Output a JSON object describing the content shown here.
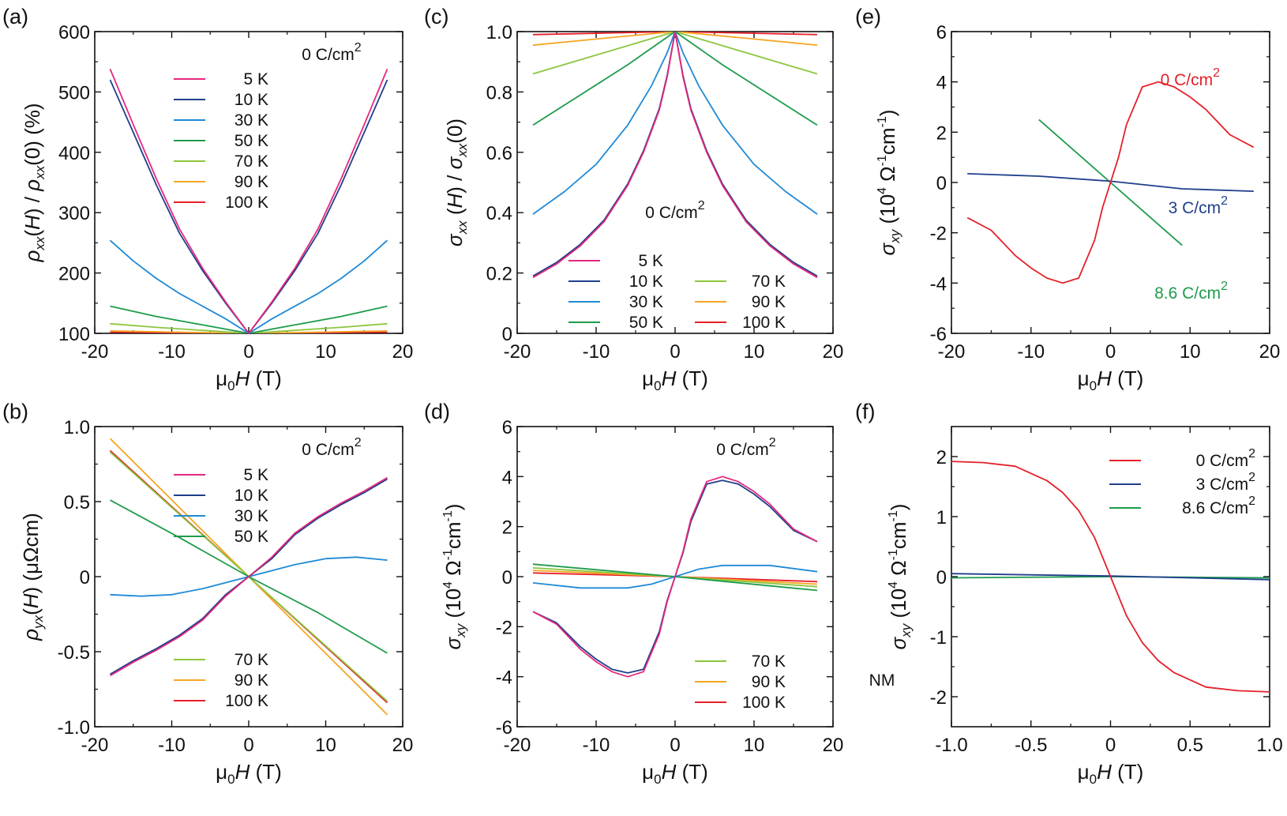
{
  "chart_data": [
    {
      "panel": "(a)",
      "type": "line",
      "xlabel": "μ0H (T)",
      "ylabel": "ρxx(H) / ρxx(0) (%)",
      "xlim": [
        -20,
        20
      ],
      "ylim": [
        100,
        600
      ],
      "xticks": [
        "-20",
        "-10",
        "0",
        "10",
        "20"
      ],
      "yticks": [
        "100",
        "200",
        "300",
        "400",
        "500",
        "600"
      ],
      "annotation": "0 C/cm²",
      "series": [
        {
          "name": "5 K",
          "color": "#e4287c",
          "x": [
            -18,
            -15,
            -12,
            -9,
            -6,
            -3,
            0,
            3,
            6,
            9,
            12,
            15,
            18
          ],
          "y": [
            538,
            446,
            356,
            273,
            208,
            152,
            100,
            152,
            208,
            273,
            356,
            446,
            538
          ]
        },
        {
          "name": "10 K",
          "color": "#1f3e8c",
          "x": [
            -18,
            -15,
            -12,
            -9,
            -6,
            -3,
            0,
            3,
            6,
            9,
            12,
            15,
            18
          ],
          "y": [
            520,
            433,
            346,
            266,
            204,
            150,
            100,
            150,
            204,
            266,
            346,
            433,
            520
          ]
        },
        {
          "name": "30 K",
          "color": "#1f8ad6",
          "x": [
            -18,
            -15,
            -12,
            -9,
            -6,
            -3,
            0,
            3,
            6,
            9,
            12,
            15,
            18
          ],
          "y": [
            254,
            220,
            191,
            166,
            145,
            124,
            100,
            124,
            145,
            166,
            191,
            220,
            254
          ]
        },
        {
          "name": "50 K",
          "color": "#1f9b4c",
          "x": [
            -18,
            -12,
            -6,
            0,
            6,
            12,
            18
          ],
          "y": [
            145,
            128,
            114,
            100,
            114,
            128,
            145
          ]
        },
        {
          "name": "70 K",
          "color": "#8cc63f",
          "x": [
            -18,
            -12,
            -6,
            0,
            6,
            12,
            18
          ],
          "y": [
            116,
            110,
            105,
            100,
            105,
            110,
            116
          ]
        },
        {
          "name": "90 K",
          "color": "#f5a623",
          "x": [
            -18,
            -9,
            0,
            9,
            18
          ],
          "y": [
            104,
            102,
            100,
            102,
            104
          ]
        },
        {
          "name": "100 K",
          "color": "#e5202a",
          "x": [
            -18,
            -9,
            0,
            9,
            18
          ],
          "y": [
            102,
            101,
            100,
            101,
            102
          ]
        }
      ]
    },
    {
      "panel": "(b)",
      "type": "line",
      "xlabel": "μ0H (T)",
      "ylabel": "ρyx(H) (μΩcm)",
      "xlim": [
        -20,
        20
      ],
      "ylim": [
        -1.0,
        1.0
      ],
      "xticks": [
        "-20",
        "-10",
        "0",
        "10",
        "20"
      ],
      "yticks": [
        "-1.0",
        "-0.5",
        "0",
        "0.5",
        "1.0"
      ],
      "annotation": "0 C/cm²",
      "series": [
        {
          "name": "5 K",
          "color": "#e4287c",
          "x": [
            -18,
            -15,
            -12,
            -9,
            -6,
            -3,
            0,
            3,
            6,
            9,
            12,
            15,
            18
          ],
          "y": [
            -0.66,
            -0.57,
            -0.49,
            -0.4,
            -0.29,
            -0.13,
            0,
            0.13,
            0.29,
            0.4,
            0.49,
            0.57,
            0.66
          ]
        },
        {
          "name": "10 K",
          "color": "#1f3e8c",
          "x": [
            -18,
            -15,
            -12,
            -9,
            -6,
            -3,
            0,
            3,
            6,
            9,
            12,
            15,
            18
          ],
          "y": [
            -0.65,
            -0.56,
            -0.48,
            -0.39,
            -0.28,
            -0.12,
            0,
            0.12,
            0.28,
            0.39,
            0.48,
            0.56,
            0.65
          ]
        },
        {
          "name": "30 K",
          "color": "#1f8ad6",
          "x": [
            -18,
            -14,
            -10,
            -6,
            -3,
            0,
            3,
            6,
            10,
            14,
            18
          ],
          "y": [
            -0.12,
            -0.13,
            -0.12,
            -0.08,
            -0.04,
            0,
            0.04,
            0.08,
            0.12,
            0.13,
            0.11
          ]
        },
        {
          "name": "50 K",
          "color": "#1f9b4c",
          "x": [
            -18,
            -9,
            0,
            9,
            18
          ],
          "y": [
            0.51,
            0.26,
            0,
            -0.24,
            -0.51
          ]
        },
        {
          "name": "70 K",
          "color": "#8cc63f",
          "x": [
            -18,
            0,
            18
          ],
          "y": [
            0.83,
            0,
            -0.83
          ]
        },
        {
          "name": "90 K",
          "color": "#f5a623",
          "x": [
            -18,
            0,
            18
          ],
          "y": [
            0.92,
            0,
            -0.92
          ]
        },
        {
          "name": "100 K",
          "color": "#e5202a",
          "x": [
            -18,
            0,
            18
          ],
          "y": [
            0.84,
            0,
            -0.84
          ]
        }
      ]
    },
    {
      "panel": "(c)",
      "type": "line",
      "xlabel": "μ0H (T)",
      "ylabel": "σxx (H) / σxx(0)",
      "xlim": [
        -20,
        20
      ],
      "ylim": [
        0,
        1.0
      ],
      "xticks": [
        "-20",
        "-10",
        "0",
        "10",
        "20"
      ],
      "yticks": [
        "0",
        "0.2",
        "0.4",
        "0.6",
        "0.8",
        "1.0"
      ],
      "annotation": "0 C/cm²",
      "series": [
        {
          "name": "5 K",
          "color": "#e4287c",
          "x": [
            -18,
            -15,
            -12,
            -9,
            -6,
            -4,
            -2,
            -1,
            0,
            1,
            2,
            4,
            6,
            9,
            12,
            15,
            18
          ],
          "y": [
            0.185,
            0.23,
            0.29,
            0.37,
            0.49,
            0.6,
            0.74,
            0.85,
            1.0,
            0.85,
            0.74,
            0.6,
            0.49,
            0.37,
            0.29,
            0.23,
            0.185
          ]
        },
        {
          "name": "10 K",
          "color": "#1f3e8c",
          "x": [
            -18,
            -15,
            -12,
            -9,
            -6,
            -4,
            -2,
            -1,
            0,
            1,
            2,
            4,
            6,
            9,
            12,
            15,
            18
          ],
          "y": [
            0.19,
            0.235,
            0.295,
            0.375,
            0.495,
            0.605,
            0.745,
            0.855,
            1.0,
            0.855,
            0.745,
            0.605,
            0.495,
            0.375,
            0.295,
            0.235,
            0.19
          ]
        },
        {
          "name": "30 K",
          "color": "#1f8ad6",
          "x": [
            -18,
            -14,
            -10,
            -6,
            -3,
            -1,
            0,
            1,
            3,
            6,
            10,
            14,
            18
          ],
          "y": [
            0.395,
            0.47,
            0.56,
            0.69,
            0.82,
            0.93,
            1.0,
            0.93,
            0.82,
            0.69,
            0.56,
            0.47,
            0.395
          ]
        },
        {
          "name": "50 K",
          "color": "#1f9b4c",
          "x": [
            -18,
            -12,
            -6,
            -3,
            0,
            3,
            6,
            12,
            18
          ],
          "y": [
            0.69,
            0.79,
            0.89,
            0.945,
            1.0,
            0.945,
            0.89,
            0.79,
            0.69
          ]
        },
        {
          "name": "70 K",
          "color": "#8cc63f",
          "x": [
            -18,
            -9,
            0,
            9,
            18
          ],
          "y": [
            0.86,
            0.93,
            1.0,
            0.93,
            0.86
          ]
        },
        {
          "name": "90 K",
          "color": "#f5a623",
          "x": [
            -18,
            -9,
            0,
            9,
            18
          ],
          "y": [
            0.955,
            0.978,
            1.0,
            0.978,
            0.955
          ]
        },
        {
          "name": "100 K",
          "color": "#e5202a",
          "x": [
            -18,
            -9,
            0,
            9,
            18
          ],
          "y": [
            0.99,
            0.995,
            1.0,
            0.995,
            0.99
          ]
        }
      ]
    },
    {
      "panel": "(d)",
      "type": "line",
      "xlabel": "μ0H (T)",
      "ylabel": "σxy (10⁴ Ω⁻¹cm⁻¹)",
      "xlim": [
        -20,
        20
      ],
      "ylim": [
        -6,
        6
      ],
      "xticks": [
        "-20",
        "-10",
        "0",
        "10",
        "20"
      ],
      "yticks": [
        "-6",
        "-4",
        "-2",
        "0",
        "2",
        "4",
        "6"
      ],
      "annotation": "0 C/cm²",
      "series": [
        {
          "name": "5 K",
          "color": "#e4287c",
          "x": [
            -18,
            -15,
            -12,
            -10,
            -8,
            -6,
            -4,
            -2,
            -1,
            0,
            1,
            2,
            4,
            6,
            8,
            10,
            12,
            15,
            18
          ],
          "y": [
            -1.4,
            -1.9,
            -2.9,
            -3.4,
            -3.8,
            -4.0,
            -3.8,
            -2.3,
            -1.0,
            0,
            1.0,
            2.3,
            3.8,
            4.0,
            3.8,
            3.4,
            2.9,
            1.9,
            1.4
          ]
        },
        {
          "name": "10 K",
          "color": "#1f3e8c",
          "x": [
            -18,
            -15,
            -12,
            -10,
            -8,
            -6,
            -4,
            -2,
            -1,
            0,
            1,
            2,
            4,
            6,
            8,
            10,
            12,
            15,
            18
          ],
          "y": [
            -1.4,
            -1.85,
            -2.8,
            -3.3,
            -3.7,
            -3.85,
            -3.7,
            -2.2,
            -0.95,
            0,
            0.95,
            2.2,
            3.7,
            3.85,
            3.7,
            3.3,
            2.8,
            1.85,
            1.4
          ]
        },
        {
          "name": "30 K",
          "color": "#1f8ad6",
          "x": [
            -18,
            -12,
            -6,
            -3,
            -1,
            0,
            1,
            3,
            6,
            12,
            18
          ],
          "y": [
            -0.25,
            -0.45,
            -0.45,
            -0.3,
            -0.1,
            0,
            0.1,
            0.3,
            0.45,
            0.45,
            0.2
          ]
        },
        {
          "name": "50 K",
          "color": "#1f9b4c",
          "x": [
            -18,
            0,
            18
          ],
          "y": [
            0.5,
            0,
            -0.55
          ]
        },
        {
          "name": "70 K",
          "color": "#8cc63f",
          "x": [
            -18,
            0,
            18
          ],
          "y": [
            0.35,
            0,
            -0.4
          ]
        },
        {
          "name": "90 K",
          "color": "#f5a623",
          "x": [
            -18,
            0,
            18
          ],
          "y": [
            0.25,
            0,
            -0.3
          ]
        },
        {
          "name": "100 K",
          "color": "#e5202a",
          "x": [
            -18,
            0,
            18
          ],
          "y": [
            0.15,
            0,
            -0.2
          ]
        }
      ]
    },
    {
      "panel": "(e)",
      "type": "line",
      "xlabel": "μ0H (T)",
      "ylabel": "σxy (10⁴ Ω⁻¹cm⁻¹)",
      "xlim": [
        -20,
        20
      ],
      "ylim": [
        -6,
        6
      ],
      "xticks": [
        "-20",
        "-10",
        "0",
        "10",
        "20"
      ],
      "yticks": [
        "-6",
        "-4",
        "-2",
        "0",
        "2",
        "4",
        "6"
      ],
      "series": [
        {
          "name": "0 C/cm²",
          "color": "#e5202a",
          "x": [
            -18,
            -15,
            -12,
            -10,
            -8,
            -6,
            -4,
            -2,
            -1,
            0,
            1,
            2,
            4,
            6,
            8,
            10,
            12,
            15,
            18
          ],
          "y": [
            -1.4,
            -1.9,
            -2.9,
            -3.4,
            -3.8,
            -4.0,
            -3.8,
            -2.3,
            -1.0,
            0,
            1.0,
            2.3,
            3.8,
            4.0,
            3.8,
            3.4,
            2.9,
            1.9,
            1.4
          ]
        },
        {
          "name": "3 C/cm²",
          "color": "#1f3e8c",
          "x": [
            -18,
            -9,
            0,
            9,
            18
          ],
          "y": [
            0.35,
            0.25,
            0.05,
            -0.25,
            -0.35
          ]
        },
        {
          "name": "8.6 C/cm²",
          "color": "#1f9b4c",
          "x": [
            -9,
            0,
            9
          ],
          "y": [
            2.5,
            0,
            -2.5
          ]
        }
      ]
    },
    {
      "panel": "(f)",
      "type": "line",
      "xlabel": "μ0H (T)",
      "ylabel": "σxy^NM (10⁴ Ω⁻¹cm⁻¹)",
      "xlim": [
        -1.0,
        1.0
      ],
      "ylim": [
        -2.5,
        2.5
      ],
      "xticks": [
        "-1.0",
        "-0.5",
        "0",
        "0.5",
        "1.0"
      ],
      "yticks": [
        "-2",
        "-1",
        "0",
        "1",
        "2"
      ],
      "series": [
        {
          "name": "0 C/cm²",
          "color": "#e5202a",
          "x": [
            -1.0,
            -0.8,
            -0.6,
            -0.4,
            -0.3,
            -0.2,
            -0.1,
            0,
            0.1,
            0.2,
            0.3,
            0.4,
            0.6,
            0.8,
            1.0
          ],
          "y": [
            1.92,
            1.9,
            1.84,
            1.6,
            1.4,
            1.1,
            0.65,
            0,
            -0.65,
            -1.1,
            -1.4,
            -1.6,
            -1.84,
            -1.9,
            -1.92
          ]
        },
        {
          "name": "3 C/cm²",
          "color": "#1f3e8c",
          "x": [
            -1.0,
            0,
            1.0
          ],
          "y": [
            0.05,
            0.01,
            -0.05
          ]
        },
        {
          "name": "8.6 C/cm²",
          "color": "#1f9b4c",
          "x": [
            -1.0,
            0,
            1.0
          ],
          "y": [
            -0.02,
            0,
            -0.02
          ]
        }
      ]
    }
  ]
}
